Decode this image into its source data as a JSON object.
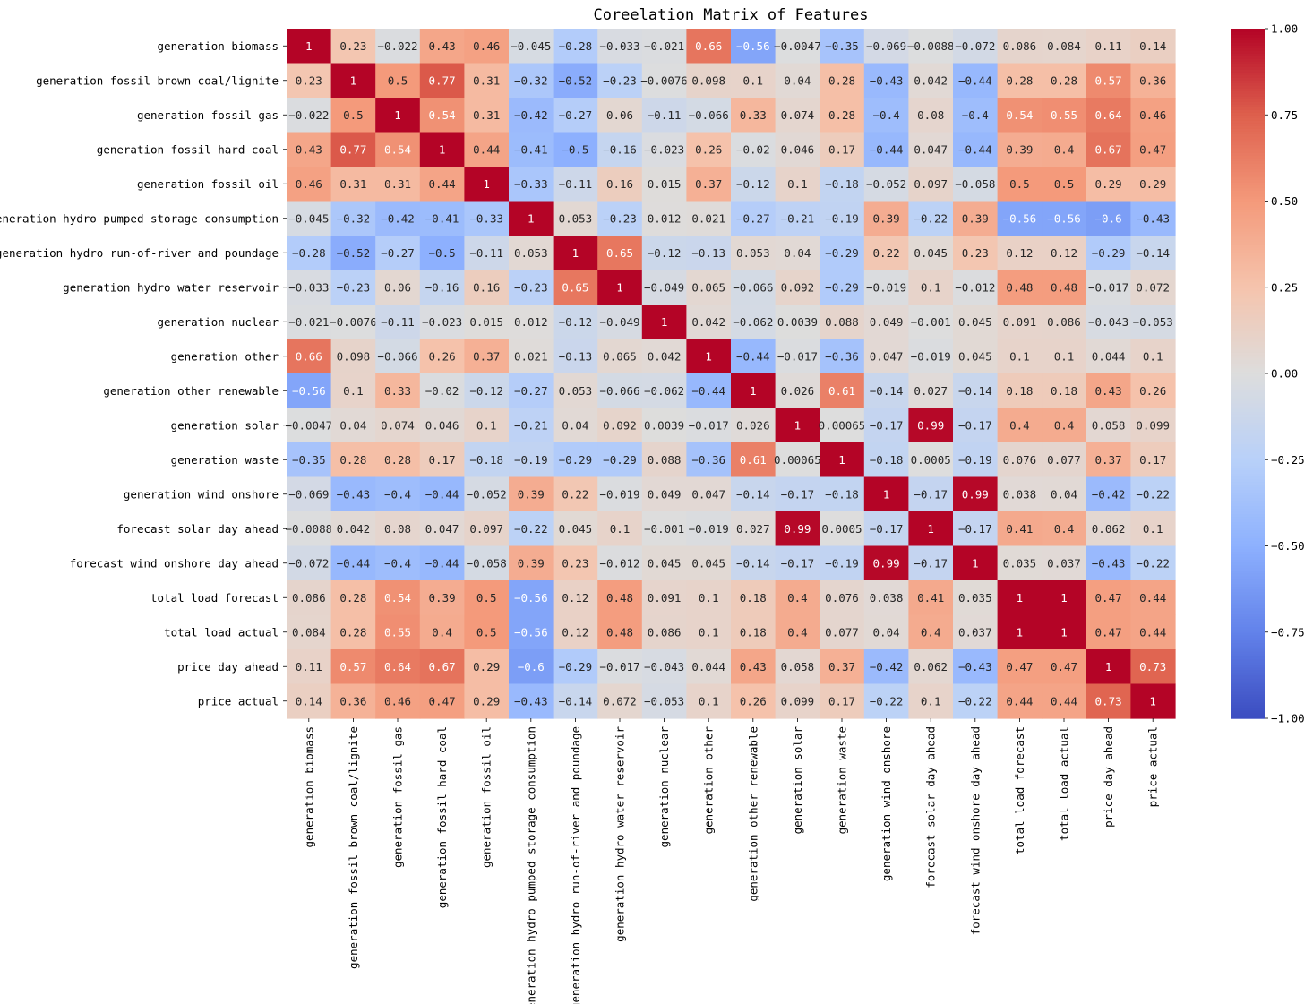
{
  "chart_data": {
    "type": "heatmap",
    "title": "Coreelation Matrix of Features",
    "labels": [
      "generation biomass",
      "generation fossil brown coal/lignite",
      "generation fossil gas",
      "generation fossil hard coal",
      "generation fossil oil",
      "generation hydro pumped storage consumption",
      "generation hydro run-of-river and poundage",
      "generation hydro water reservoir",
      "generation nuclear",
      "generation other",
      "generation other renewable",
      "generation solar",
      "generation waste",
      "generation wind onshore",
      "forecast solar day ahead",
      "forecast wind onshore day ahead",
      "total load forecast",
      "total load actual",
      "price day ahead",
      "price actual"
    ],
    "values": [
      [
        1,
        0.23,
        -0.022,
        0.43,
        0.46,
        -0.045,
        -0.28,
        -0.033,
        -0.021,
        0.66,
        -0.56,
        -0.0047,
        -0.35,
        -0.069,
        -0.0088,
        -0.072,
        0.086,
        0.084,
        0.11,
        0.14
      ],
      [
        0.23,
        1,
        0.5,
        0.77,
        0.31,
        -0.32,
        -0.52,
        -0.23,
        -0.0076,
        0.098,
        0.1,
        0.04,
        0.28,
        -0.43,
        0.042,
        -0.44,
        0.28,
        0.28,
        0.57,
        0.36
      ],
      [
        -0.022,
        0.5,
        1,
        0.54,
        0.31,
        -0.42,
        -0.27,
        0.06,
        -0.11,
        -0.066,
        0.33,
        0.074,
        0.28,
        -0.4,
        0.08,
        -0.4,
        0.54,
        0.55,
        0.64,
        0.46
      ],
      [
        0.43,
        0.77,
        0.54,
        1,
        0.44,
        -0.41,
        -0.5,
        -0.16,
        -0.023,
        0.26,
        -0.02,
        0.046,
        0.17,
        -0.44,
        0.047,
        -0.44,
        0.39,
        0.4,
        0.67,
        0.47
      ],
      [
        0.46,
        0.31,
        0.31,
        0.44,
        1,
        -0.33,
        -0.11,
        0.16,
        0.015,
        0.37,
        -0.12,
        0.1,
        -0.18,
        -0.052,
        0.097,
        -0.058,
        0.5,
        0.5,
        0.29,
        0.29
      ],
      [
        -0.045,
        -0.32,
        -0.42,
        -0.41,
        -0.33,
        1,
        0.053,
        -0.23,
        0.012,
        0.021,
        -0.27,
        -0.21,
        -0.19,
        0.39,
        -0.22,
        0.39,
        -0.56,
        -0.56,
        -0.6,
        -0.43
      ],
      [
        -0.28,
        -0.52,
        -0.27,
        -0.5,
        -0.11,
        0.053,
        1,
        0.65,
        -0.12,
        -0.13,
        0.053,
        0.04,
        -0.29,
        0.22,
        0.045,
        0.23,
        0.12,
        0.12,
        -0.29,
        -0.14
      ],
      [
        -0.033,
        -0.23,
        0.06,
        -0.16,
        0.16,
        -0.23,
        0.65,
        1,
        -0.049,
        0.065,
        -0.066,
        0.092,
        -0.29,
        -0.019,
        0.1,
        -0.012,
        0.48,
        0.48,
        -0.017,
        0.072
      ],
      [
        -0.021,
        -0.0076,
        -0.11,
        -0.023,
        0.015,
        0.012,
        -0.12,
        -0.049,
        1,
        0.042,
        -0.062,
        0.0039,
        0.088,
        0.049,
        -0.001,
        0.045,
        0.091,
        0.086,
        -0.043,
        -0.053
      ],
      [
        0.66,
        0.098,
        -0.066,
        0.26,
        0.37,
        0.021,
        -0.13,
        0.065,
        0.042,
        1,
        -0.44,
        -0.017,
        -0.36,
        0.047,
        -0.019,
        0.045,
        0.1,
        0.1,
        0.044,
        0.1
      ],
      [
        -0.56,
        0.1,
        0.33,
        -0.02,
        -0.12,
        -0.27,
        0.053,
        -0.066,
        -0.062,
        -0.44,
        1,
        0.026,
        0.61,
        -0.14,
        0.027,
        -0.14,
        0.18,
        0.18,
        0.43,
        0.26
      ],
      [
        -0.0047,
        0.04,
        0.074,
        0.046,
        0.1,
        -0.21,
        0.04,
        0.092,
        0.0039,
        -0.017,
        0.026,
        1,
        0.00065,
        -0.17,
        0.99,
        -0.17,
        0.4,
        0.4,
        0.058,
        0.099
      ],
      [
        -0.35,
        0.28,
        0.28,
        0.17,
        -0.18,
        -0.19,
        -0.29,
        -0.29,
        0.088,
        -0.36,
        0.61,
        0.00065,
        1,
        -0.18,
        0.0005,
        -0.19,
        0.076,
        0.077,
        0.37,
        0.17
      ],
      [
        -0.069,
        -0.43,
        -0.4,
        -0.44,
        -0.052,
        0.39,
        0.22,
        -0.019,
        0.049,
        0.047,
        -0.14,
        -0.17,
        -0.18,
        1,
        -0.17,
        0.99,
        0.038,
        0.04,
        -0.42,
        -0.22
      ],
      [
        -0.0088,
        0.042,
        0.08,
        0.047,
        0.097,
        -0.22,
        0.045,
        0.1,
        -0.001,
        -0.019,
        0.027,
        0.99,
        0.0005,
        -0.17,
        1,
        -0.17,
        0.41,
        0.4,
        0.062,
        0.1
      ],
      [
        -0.072,
        -0.44,
        -0.4,
        -0.44,
        -0.058,
        0.39,
        0.23,
        -0.012,
        0.045,
        0.045,
        -0.14,
        -0.17,
        -0.19,
        0.99,
        -0.17,
        1,
        0.035,
        0.037,
        -0.43,
        -0.22
      ],
      [
        0.086,
        0.28,
        0.54,
        0.39,
        0.5,
        -0.56,
        0.12,
        0.48,
        0.091,
        0.1,
        0.18,
        0.4,
        0.076,
        0.038,
        0.41,
        0.035,
        1,
        1,
        0.47,
        0.44
      ],
      [
        0.084,
        0.28,
        0.55,
        0.4,
        0.5,
        -0.56,
        0.12,
        0.48,
        0.086,
        0.1,
        0.18,
        0.4,
        0.077,
        0.04,
        0.4,
        0.037,
        1,
        1,
        0.47,
        0.44
      ],
      [
        0.11,
        0.57,
        0.64,
        0.67,
        0.29,
        -0.6,
        -0.29,
        -0.017,
        -0.043,
        0.044,
        0.43,
        0.058,
        0.37,
        -0.42,
        0.062,
        -0.43,
        0.47,
        0.47,
        1,
        0.73
      ],
      [
        0.14,
        0.36,
        0.46,
        0.47,
        0.29,
        -0.43,
        -0.14,
        0.072,
        -0.053,
        0.1,
        0.26,
        0.099,
        0.17,
        -0.22,
        0.1,
        -0.22,
        0.44,
        0.44,
        0.73,
        1
      ]
    ],
    "colormap": "coolwarm",
    "vmin": -1,
    "vmax": 1,
    "colorbar_ticks": [
      1.0,
      0.75,
      0.5,
      0.25,
      0.0,
      -0.25,
      -0.5,
      -0.75,
      -1.0
    ],
    "colorbar_tick_labels": [
      "1.00",
      "0.75",
      "0.50",
      "0.25",
      "0.00",
      "−0.25",
      "−0.50",
      "−0.75",
      "−1.00"
    ],
    "annotated": true
  }
}
